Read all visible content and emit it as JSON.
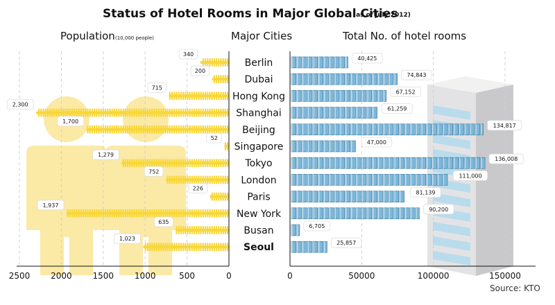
{
  "header": {
    "title": "Status of Hotel Rooms in Major Global Cities",
    "subtitle": "(as of July 2012)"
  },
  "left_panel": {
    "heading": "Population",
    "unit_note": "(10,000 people)"
  },
  "center_panel": {
    "heading": "Major Cities"
  },
  "right_panel": {
    "heading": "Total No. of hotel rooms"
  },
  "source": "Source: KTO",
  "colors": {
    "population_bar": "#f7d73a",
    "population_figure": "#fbe9a6",
    "room_block": "#7cb8dc",
    "room_block_edge": "#2f6f95",
    "building": "#e3e3e5",
    "building_window": "#b9dcec",
    "grid": "#cfcfcf"
  },
  "chart_data": [
    {
      "type": "bar",
      "orientation": "horizontal",
      "direction": "right-to-left",
      "title": "Population",
      "xlabel": "(10,000 people)",
      "xlim": [
        0,
        2500
      ],
      "xticks": [
        "2500",
        "2000",
        "1500",
        "1000",
        "500",
        "0"
      ],
      "grid": true,
      "categories": [
        "Berlin",
        "Dubai",
        "Hong Kong",
        "Shanghai",
        "Beijing",
        "Singapore",
        "Tokyo",
        "London",
        "Paris",
        "New York",
        "Busan",
        "Seoul"
      ],
      "values": [
        340,
        200,
        715,
        2300,
        1700,
        52,
        1279,
        752,
        226,
        1937,
        635,
        1023
      ],
      "labels": [
        "340",
        "200",
        "715",
        "2,300",
        "1,700",
        "52",
        "1,279",
        "752",
        "226",
        "1,937",
        "635",
        "1,023"
      ]
    },
    {
      "type": "bar",
      "orientation": "horizontal",
      "title": "Total No. of hotel rooms",
      "xlim": [
        0,
        170000
      ],
      "xticks": [
        "0",
        "50000",
        "100000",
        "150000"
      ],
      "grid": true,
      "categories": [
        "Berlin",
        "Dubai",
        "Hong Kong",
        "Shanghai",
        "Beijing",
        "Singapore",
        "Tokyo",
        "London",
        "Paris",
        "New York",
        "Busan",
        "Seoul"
      ],
      "values": [
        40425,
        74843,
        67152,
        61259,
        134817,
        47000,
        136008,
        111000,
        81139,
        90200,
        6705,
        25857
      ],
      "labels": [
        "40,425",
        "74,843",
        "67,152",
        "61,259",
        "134,817",
        "47,000",
        "136,008",
        "111,000",
        "81,139",
        "90,200",
        "6,705",
        "25,857"
      ],
      "highlight_category": "Seoul"
    }
  ]
}
